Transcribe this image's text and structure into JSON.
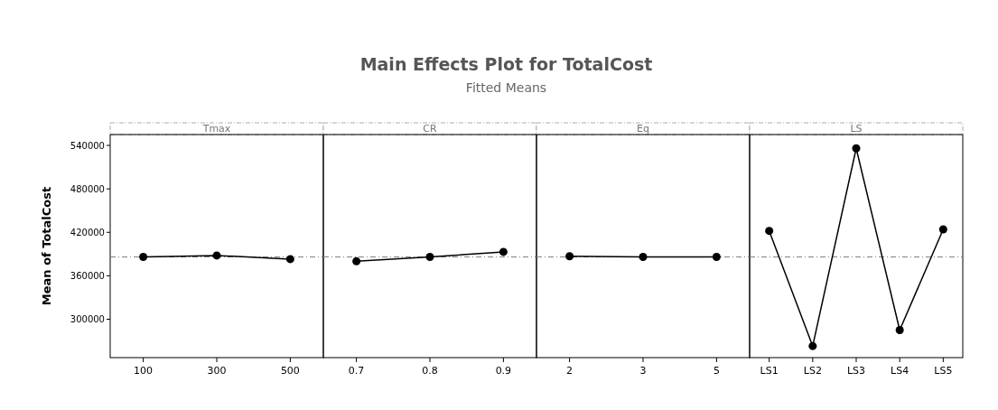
{
  "chart_data": [
    {
      "type": "line",
      "xlabel": "Tmax",
      "ylabel": "Mean of TotalCost",
      "categories": [
        "100",
        "300",
        "500"
      ],
      "series": [
        {
          "color": "#000000",
          "values": [
            386000,
            388000,
            383000
          ]
        }
      ],
      "ylim": [
        247000,
        555000
      ],
      "yticks": [
        300000,
        360000,
        420000,
        480000,
        540000
      ],
      "marker": "circle",
      "line_style": "solid",
      "grid": false,
      "ref_lines": [
        {
          "axis": "y",
          "value": 386000,
          "color": "#808080"
        }
      ]
    },
    {
      "type": "line",
      "title": "Main Effects Plot for TotalCost",
      "subtitle": "Fitted Means",
      "xlabel": "CR",
      "categories": [
        "0.7",
        "0.8",
        "0.9"
      ],
      "series": [
        {
          "color": "#000000",
          "values": [
            380000,
            386000,
            393000
          ]
        }
      ],
      "ylim": [
        247000,
        555000
      ],
      "tick_labels": "x",
      "marker": "circle",
      "line_style": "solid",
      "grid": false,
      "ref_lines": [
        {
          "axis": "y",
          "value": 386000,
          "color": "#808080"
        }
      ]
    },
    {
      "type": "line",
      "xlabel": "Eq",
      "categories": [
        "2",
        "3",
        "5"
      ],
      "series": [
        {
          "color": "#000000",
          "values": [
            387000,
            386000,
            386000
          ]
        }
      ],
      "ylim": [
        247000,
        555000
      ],
      "tick_labels": "x",
      "marker": "circle",
      "line_style": "solid",
      "grid": false,
      "ref_lines": [
        {
          "axis": "y",
          "value": 386000,
          "color": "#808080"
        }
      ]
    },
    {
      "type": "line",
      "xlabel": "LS",
      "categories": [
        "LS1",
        "LS2",
        "LS3",
        "LS4",
        "LS5"
      ],
      "series": [
        {
          "color": "#000000",
          "values": [
            422000,
            263000,
            536000,
            285000,
            424000
          ]
        }
      ],
      "ylim": [
        247000,
        555000
      ],
      "tick_labels": "x",
      "marker": "circle",
      "line_style": "solid",
      "grid": false,
      "ref_lines": [
        {
          "axis": "y",
          "value": 386000,
          "color": "#808080"
        }
      ]
    }
  ]
}
